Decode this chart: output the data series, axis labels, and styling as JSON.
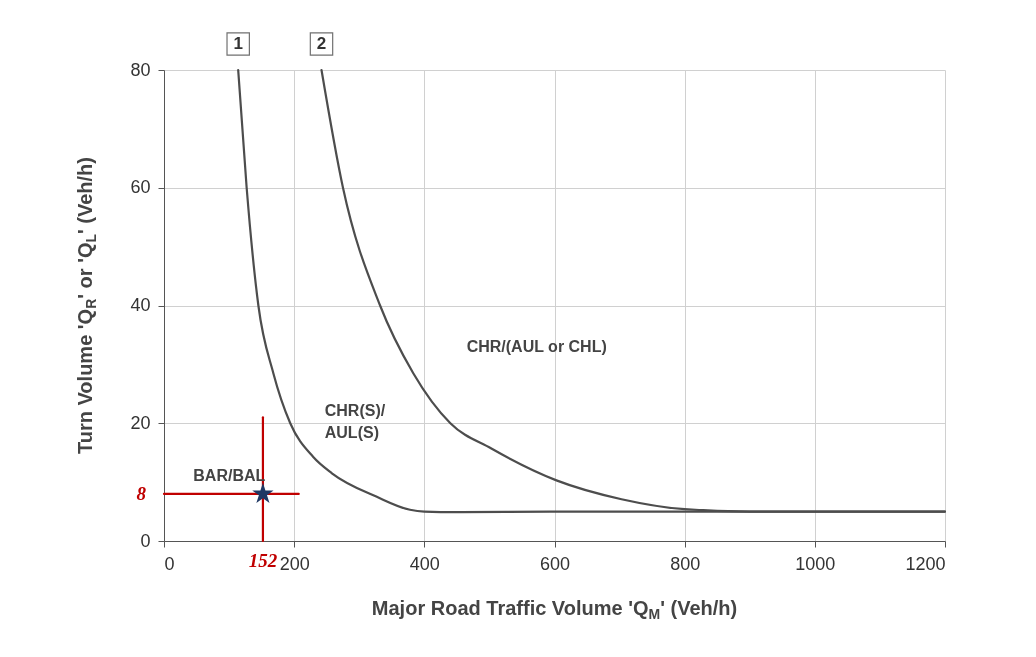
{
  "chart_data": {
    "type": "line",
    "xlabel": "Major Road Traffic Volume 'Q$_{M}$' (Veh/h)",
    "ylabel": "Turn Volume 'Q$_{R}$' or 'Q$_{L}$' (Veh/h)",
    "xlim": [
      0,
      1200
    ],
    "xticks": [
      0,
      200,
      400,
      600,
      800,
      {
        "value": 1000,
        "label": "1000"
      },
      {
        "value": 1200,
        "label": "1200"
      }
    ],
    "ylim": [
      0,
      80
    ],
    "yticks": [
      0,
      20,
      40,
      60,
      80
    ],
    "grid": true,
    "series": [
      {
        "color": "#4d4d4d",
        "marker": "none",
        "line_style": "solid",
        "x": [
          114,
          127,
          145,
          168,
          194,
          229,
          258,
          327,
          378,
          400,
          450,
          600,
          800,
          1000,
          1200
        ],
        "values": [
          80,
          60,
          40,
          28.5,
          20,
          14.3,
          11.5,
          7.5,
          5.3,
          5,
          4.9,
          5,
          5,
          5,
          5
        ]
      },
      {
        "color": "#4d4d4d",
        "marker": "none",
        "line_style": "solid",
        "x": [
          242,
          275,
          332,
          383,
          440,
          503,
          603,
          703,
          800,
          900,
          1000,
          1200
        ],
        "values": [
          80,
          60,
          40,
          28.5,
          20,
          15.7,
          10.3,
          7.1,
          5.4,
          5,
          5,
          5
        ]
      },
      {
        "color": "#c00000",
        "marker": "none",
        "line_style": "solid",
        "x": [
          0,
          207
        ],
        "values": [
          8,
          8
        ]
      },
      {
        "color": "#c00000",
        "marker": "none",
        "line_style": "solid",
        "x": [
          152,
          152
        ],
        "values": [
          0,
          21
        ]
      },
      {
        "type": "scatter",
        "color": "#1f3864",
        "marker": "star",
        "x": [
          152
        ],
        "values": [
          8
        ]
      }
    ],
    "annotations": [
      {
        "text": "1",
        "x": 114,
        "y": 80
      },
      {
        "text": "2",
        "x": 242,
        "y": 80
      },
      "BAR/BAL",
      "CHR(S)/\nAUL(S)",
      "CHR/(AUL or CHL)",
      {
        "text": "8",
        "x": 0,
        "y": 8
      },
      {
        "text": "152",
        "x": 152,
        "y": 0
      }
    ]
  }
}
